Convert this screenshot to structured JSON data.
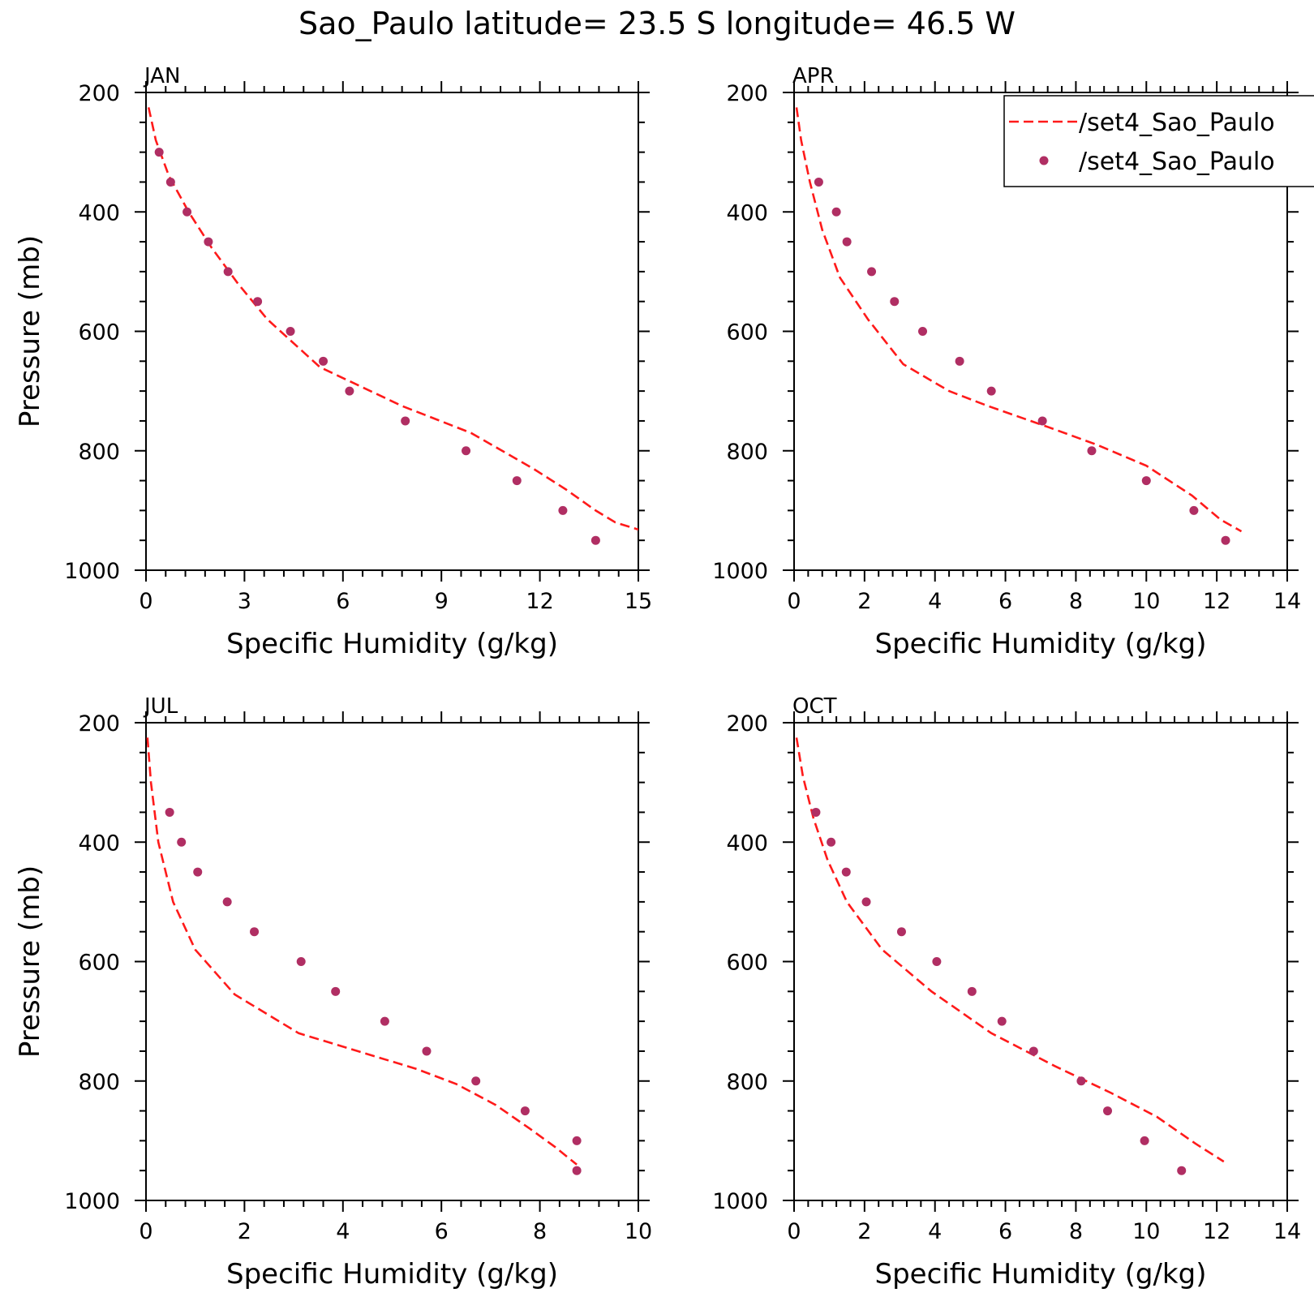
{
  "figure": {
    "title": "Sao_Paulo  latitude= 23.5 S longitude= 46.5 W",
    "line_color": "#ff1a1a",
    "marker_color": "#b02e63"
  },
  "legend": {
    "placement": "top-right of APR panel",
    "entries": [
      {
        "label": "/set4_Sao_Paulo",
        "style": "dashed-line"
      },
      {
        "label": "/set4_Sao_Paulo",
        "style": "marker"
      }
    ]
  },
  "chart_data": [
    {
      "type": "line",
      "panel": "JAN",
      "xlabel": "Specific Humidity (g/kg)",
      "ylabel": "Pressure (mb)",
      "xlim": [
        0,
        15
      ],
      "xticks": [
        0,
        3,
        6,
        9,
        12,
        15
      ],
      "ylim": [
        200,
        1000
      ],
      "yticks": [
        200,
        400,
        600,
        800,
        1000
      ],
      "y_inverted": true,
      "series": [
        {
          "style": "dashed-line",
          "x": [
            0.08,
            0.3,
            0.7,
            1.3,
            2.0,
            2.8,
            3.7,
            5.3,
            7.8,
            9.9,
            11.8,
            12.8,
            13.7,
            14.3,
            15.0
          ],
          "y": [
            225,
            280,
            340,
            400,
            460,
            520,
            580,
            660,
            725,
            770,
            830,
            865,
            900,
            920,
            932
          ]
        },
        {
          "style": "marker",
          "x": [
            0.4,
            0.75,
            1.25,
            1.9,
            2.5,
            3.4,
            4.4,
            5.4,
            6.2,
            7.9,
            9.75,
            11.3,
            12.7,
            13.7
          ],
          "y": [
            300,
            350,
            400,
            450,
            500,
            550,
            600,
            650,
            700,
            750,
            800,
            850,
            900,
            950
          ]
        }
      ]
    },
    {
      "type": "line",
      "panel": "APR",
      "xlabel": "Specific Humidity (g/kg)",
      "ylabel": "",
      "xlim": [
        0,
        14
      ],
      "xticks": [
        0,
        2,
        4,
        6,
        8,
        10,
        12,
        14
      ],
      "ylim": [
        200,
        1000
      ],
      "yticks": [
        200,
        400,
        600,
        800,
        1000
      ],
      "y_inverted": true,
      "series": [
        {
          "style": "dashed-line",
          "x": [
            0.07,
            0.2,
            0.45,
            0.8,
            1.3,
            2.1,
            3.1,
            4.4,
            5.5,
            7.2,
            8.6,
            10.0,
            11.3,
            12.1,
            12.7
          ],
          "y": [
            225,
            280,
            350,
            430,
            510,
            580,
            655,
            700,
            725,
            760,
            790,
            825,
            875,
            915,
            935
          ]
        },
        {
          "style": "marker",
          "x": [
            0.7,
            1.2,
            1.5,
            2.2,
            2.85,
            3.65,
            4.7,
            5.6,
            7.05,
            8.45,
            10.0,
            11.35,
            12.25
          ],
          "y": [
            350,
            400,
            450,
            500,
            550,
            600,
            650,
            700,
            750,
            800,
            850,
            900,
            950
          ]
        }
      ]
    },
    {
      "type": "line",
      "panel": "JUL",
      "xlabel": "Specific Humidity (g/kg)",
      "ylabel": "Pressure (mb)",
      "xlim": [
        0,
        10
      ],
      "xticks": [
        0,
        2,
        4,
        6,
        8,
        10
      ],
      "ylim": [
        200,
        1000
      ],
      "yticks": [
        200,
        400,
        600,
        800,
        1000
      ],
      "y_inverted": true,
      "series": [
        {
          "style": "dashed-line",
          "x": [
            0.03,
            0.1,
            0.25,
            0.55,
            1.0,
            1.8,
            3.1,
            4.3,
            5.5,
            6.3,
            7.1,
            7.8,
            8.3,
            8.75
          ],
          "y": [
            225,
            300,
            400,
            500,
            580,
            655,
            720,
            750,
            780,
            805,
            840,
            880,
            910,
            940
          ]
        },
        {
          "style": "marker",
          "x": [
            0.48,
            0.72,
            1.05,
            1.65,
            2.2,
            3.15,
            3.85,
            4.85,
            5.7,
            6.7,
            7.7,
            8.75,
            8.75
          ],
          "y": [
            350,
            400,
            450,
            500,
            550,
            600,
            650,
            700,
            750,
            800,
            850,
            900,
            950
          ]
        }
      ]
    },
    {
      "type": "line",
      "panel": "OCT",
      "xlabel": "Specific Humidity (g/kg)",
      "ylabel": "",
      "xlim": [
        0,
        14
      ],
      "xticks": [
        0,
        2,
        4,
        6,
        8,
        10,
        12,
        14
      ],
      "ylim": [
        200,
        1000
      ],
      "yticks": [
        200,
        400,
        600,
        800,
        1000
      ],
      "y_inverted": true,
      "series": [
        {
          "style": "dashed-line",
          "x": [
            0.07,
            0.25,
            0.55,
            0.95,
            1.5,
            2.5,
            3.9,
            5.6,
            7.4,
            9.0,
            10.3,
            11.4,
            12.2
          ],
          "y": [
            225,
            290,
            360,
            430,
            500,
            580,
            650,
            720,
            775,
            820,
            860,
            905,
            935
          ]
        },
        {
          "style": "marker",
          "x": [
            0.62,
            1.05,
            1.48,
            2.05,
            3.05,
            4.05,
            5.05,
            5.9,
            6.8,
            8.15,
            8.9,
            9.95,
            11.0
          ],
          "y": [
            350,
            400,
            450,
            500,
            550,
            600,
            650,
            700,
            750,
            800,
            850,
            900,
            950
          ]
        }
      ]
    }
  ]
}
